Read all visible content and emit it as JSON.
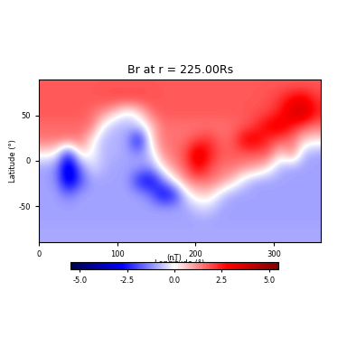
{
  "chart_data": {
    "type": "heatmap",
    "title": "Br at r = 225.00Rs",
    "x_label": "Longitude (°)",
    "y_label": "Latitude (°)",
    "xlim": [
      0,
      360
    ],
    "ylim": [
      -90,
      90
    ],
    "xticks": [
      0,
      100,
      200,
      300
    ],
    "yticks": [
      -50,
      0,
      50
    ],
    "colorbar": {
      "label": "(nT)",
      "range": [
        -5.5,
        5.5
      ],
      "ticks": [
        {
          "value": -5,
          "label": "-5.0"
        },
        {
          "value": -2.5,
          "label": "-2.5"
        },
        {
          "value": 0,
          "label": "0.0"
        },
        {
          "value": 2.5,
          "label": "2.5"
        },
        {
          "value": 5,
          "label": "5.0"
        }
      ]
    },
    "cells": [
      [
        1.8,
        1.8,
        1.8,
        1.8,
        1.8,
        1.8,
        1.8,
        1.8,
        1.8,
        1.8,
        1.8,
        1.8,
        1.8,
        1.8,
        1.8,
        1.8,
        1.8,
        1.8,
        1.8,
        1.8,
        1.8,
        1.8,
        1.8,
        1.8
      ],
      [
        1.8,
        1.8,
        1.8,
        1.8,
        1.8,
        1.9,
        2.0,
        2.0,
        2.0,
        1.9,
        1.8,
        1.8,
        1.8,
        1.8,
        1.8,
        1.8,
        1.8,
        1.8,
        1.8,
        1.9,
        2.2,
        2.8,
        3.0,
        2.2
      ],
      [
        1.8,
        1.8,
        1.8,
        1.8,
        1.6,
        1.2,
        0.5,
        -0.3,
        0.3,
        1.5,
        1.8,
        1.8,
        1.8,
        1.8,
        1.8,
        1.8,
        1.8,
        1.8,
        1.9,
        2.0,
        2.5,
        3.5,
        3.8,
        2.5
      ],
      [
        1.6,
        1.6,
        1.6,
        1.6,
        1.5,
        -0.2,
        -0.8,
        -0.8,
        -0.5,
        0.5,
        1.5,
        1.5,
        1.5,
        1.5,
        1.5,
        1.5,
        1.6,
        1.8,
        2.2,
        3.0,
        3.2,
        2.5,
        1.8,
        1.5
      ],
      [
        1.5,
        1.5,
        1.5,
        1.5,
        0.2,
        -0.8,
        -0.8,
        -1.0,
        -3.0,
        0.3,
        1.5,
        1.5,
        1.6,
        2.0,
        2.2,
        1.6,
        1.8,
        3.0,
        3.0,
        2.2,
        1.8,
        1.5,
        0.5,
        0.3
      ],
      [
        0.2,
        0.0,
        -2.5,
        0.5,
        0.0,
        -0.8,
        -0.8,
        -1.0,
        -1.2,
        -0.5,
        1.2,
        1.5,
        2.0,
        3.5,
        2.5,
        1.8,
        1.8,
        1.8,
        1.8,
        1.8,
        0.3,
        1.5,
        -0.8,
        -1.0
      ],
      [
        -1.0,
        -1.2,
        -3.8,
        -1.5,
        -0.3,
        -0.8,
        -1.0,
        -1.0,
        -1.0,
        -1.2,
        0.3,
        1.2,
        1.8,
        3.0,
        2.0,
        1.5,
        1.5,
        1.2,
        1.0,
        0.3,
        -0.8,
        -1.0,
        -1.0,
        -1.0
      ],
      [
        -1.0,
        -1.2,
        -3.5,
        -2.0,
        -1.0,
        -1.0,
        -1.0,
        -1.0,
        -2.5,
        -3.0,
        -1.5,
        0.0,
        1.2,
        1.5,
        1.5,
        1.2,
        0.5,
        -0.5,
        -1.0,
        -1.0,
        -1.0,
        -1.0,
        -1.0,
        -1.0
      ],
      [
        -1.0,
        -1.0,
        -1.5,
        -1.0,
        -1.0,
        -1.0,
        -1.0,
        -1.0,
        -1.0,
        -1.5,
        -3.0,
        -2.5,
        -0.3,
        0.5,
        0.5,
        -0.5,
        -1.0,
        -1.0,
        -1.0,
        -1.0,
        -1.0,
        -1.0,
        -1.0,
        -1.0
      ],
      [
        -1.0,
        -1.0,
        -1.0,
        -1.0,
        -1.0,
        -1.0,
        -1.0,
        -1.0,
        -1.0,
        -1.0,
        -1.0,
        -1.0,
        -1.0,
        -0.5,
        -0.5,
        -1.0,
        -1.0,
        -1.0,
        -1.0,
        -1.0,
        -1.0,
        -1.0,
        -1.0,
        -1.0
      ],
      [
        -1.0,
        -1.0,
        -1.0,
        -1.0,
        -1.0,
        -1.0,
        -1.0,
        -1.0,
        -1.0,
        -1.0,
        -1.0,
        -1.0,
        -1.0,
        -1.0,
        -1.0,
        -1.0,
        -1.0,
        -1.0,
        -1.0,
        -1.0,
        -1.0,
        -1.0,
        -1.0,
        -1.0
      ],
      [
        -0.9,
        -0.9,
        -0.9,
        -0.9,
        -0.9,
        -0.9,
        -0.9,
        -0.9,
        -0.9,
        -0.9,
        -0.9,
        -0.9,
        -0.9,
        -0.9,
        -0.9,
        -0.9,
        -0.9,
        -0.9,
        -0.9,
        -0.9,
        -0.9,
        -0.9,
        -0.9,
        -0.9
      ]
    ]
  }
}
